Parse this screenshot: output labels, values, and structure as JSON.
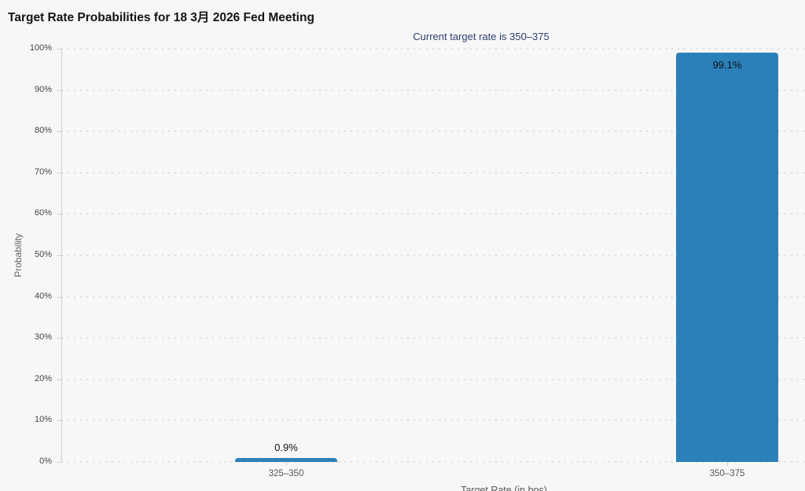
{
  "chart": {
    "title": "Target Rate Probabilities for 18 3月 2026 Fed Meeting",
    "subtitle": "Current target rate is 350–375",
    "xlabel": "Target Rate (in bps)",
    "ylabel": "Probability"
  },
  "chart_data": {
    "type": "bar",
    "title": "Target Rate Probabilities for 18 3月 2026 Fed Meeting",
    "subtitle": "Current target rate is 350–375",
    "categories": [
      "325–350",
      "350–375"
    ],
    "values": [
      0.9,
      99.1
    ],
    "value_labels": [
      "0.9%",
      "99.1%"
    ],
    "xlabel": "Target Rate (in bps)",
    "ylabel": "Probability",
    "ylim": [
      0,
      100
    ],
    "ytick_step": 10,
    "ytick_labels": [
      "0%",
      "10%",
      "20%",
      "30%",
      "40%",
      "50%",
      "60%",
      "70%",
      "80%",
      "90%",
      "100%"
    ],
    "grid": "horizontal-dotted",
    "legend": "none",
    "colors": {
      "bar": "#2b80b9",
      "subtitle_text": "#2d3f6e",
      "background": "#f7f7f7",
      "gridline": "#dfdfdf",
      "axis_line": "#cfcfcf"
    }
  }
}
